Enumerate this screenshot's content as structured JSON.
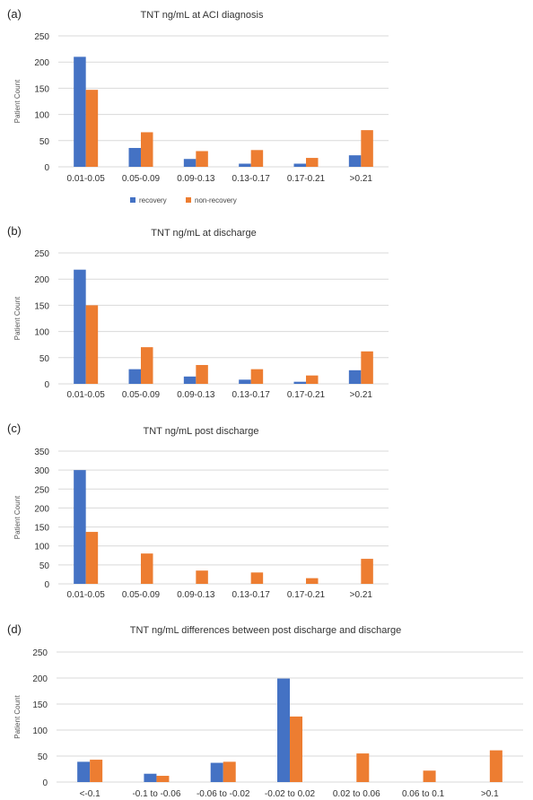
{
  "colors": {
    "recovery": "#4472C4",
    "non_recovery": "#ED7D31",
    "grid": "#d9d9d9"
  },
  "legend": {
    "recovery": "recovery",
    "non_recovery": "non-recovery"
  },
  "chart_data": [
    {
      "panel": "(a)",
      "type": "bar",
      "title": "TNT ng/mL at ACI diagnosis",
      "ylabel": "Patient Count",
      "xlabel": "",
      "ylim": [
        0,
        250
      ],
      "yticks": [
        0,
        50,
        100,
        150,
        200,
        250
      ],
      "categories": [
        "0.01-0.05",
        "0.05-0.09",
        "0.09-0.13",
        "0.13-0.17",
        "0.17-0.21",
        ">0.21"
      ],
      "series": [
        {
          "name": "recovery",
          "values": [
            210,
            36,
            15,
            6,
            6,
            22
          ]
        },
        {
          "name": "non-recovery",
          "values": [
            147,
            66,
            30,
            32,
            17,
            70
          ]
        }
      ],
      "grid": true,
      "legend_position": "bottom"
    },
    {
      "panel": "(b)",
      "type": "bar",
      "title": "TNT ng/mL at discharge",
      "ylabel": "Patient Count",
      "xlabel": "",
      "ylim": [
        0,
        250
      ],
      "yticks": [
        0,
        50,
        100,
        150,
        200,
        250
      ],
      "categories": [
        "0.01-0.05",
        "0.05-0.09",
        "0.09-0.13",
        "0.13-0.17",
        "0.17-0.21",
        ">0.21"
      ],
      "series": [
        {
          "name": "recovery",
          "values": [
            218,
            28,
            14,
            8,
            4,
            26
          ]
        },
        {
          "name": "non-recovery",
          "values": [
            150,
            70,
            36,
            28,
            16,
            62
          ]
        }
      ],
      "grid": true
    },
    {
      "panel": "(c)",
      "type": "bar",
      "title": "TNT ng/mL post discharge",
      "ylabel": "Patient Count",
      "xlabel": "",
      "ylim": [
        0,
        350
      ],
      "yticks": [
        0,
        50,
        100,
        150,
        200,
        250,
        300,
        350
      ],
      "categories": [
        "0.01-0.05",
        "0.05-0.09",
        "0.09-0.13",
        "0.13-0.17",
        "0.17-0.21",
        ">0.21"
      ],
      "series": [
        {
          "name": "recovery",
          "values": [
            300,
            0,
            0,
            0,
            0,
            0
          ]
        },
        {
          "name": "non-recovery",
          "values": [
            137,
            80,
            35,
            30,
            15,
            66
          ]
        }
      ],
      "grid": true
    },
    {
      "panel": "(d)",
      "type": "bar",
      "title": "TNT ng/mL differences between post discharge and discharge",
      "ylabel": "Patient Count",
      "xlabel": "",
      "ylim": [
        0,
        250
      ],
      "yticks": [
        0,
        50,
        100,
        150,
        200,
        250
      ],
      "categories": [
        "<-0.1",
        "-0.1 to -0.06",
        "-0.06 to -0.02",
        "-0.02 to 0.02",
        "0.02 to 0.06",
        "0.06 to 0.1",
        ">0.1"
      ],
      "series": [
        {
          "name": "recovery",
          "values": [
            39,
            16,
            37,
            199,
            0,
            0,
            0
          ]
        },
        {
          "name": "non-recovery",
          "values": [
            43,
            12,
            39,
            126,
            55,
            22,
            61
          ]
        }
      ],
      "grid": true
    }
  ]
}
